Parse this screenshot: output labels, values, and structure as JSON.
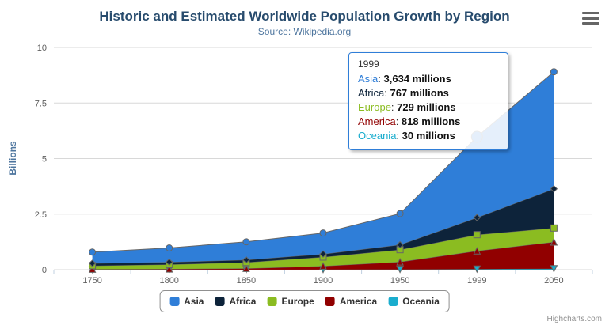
{
  "chart_data": {
    "type": "area",
    "stacking": "normal",
    "title": "Historic and Estimated Worldwide Population Growth by Region",
    "subtitle": "Source: Wikipedia.org",
    "xlabel": "",
    "ylabel": "Billions",
    "categories": [
      "1750",
      "1800",
      "1850",
      "1900",
      "1950",
      "1999",
      "2050"
    ],
    "series": [
      {
        "name": "Asia",
        "color": "#2f7ed8",
        "marker": "circle",
        "values": [
          502,
          635,
          809,
          947,
          1402,
          3634,
          5268
        ]
      },
      {
        "name": "Africa",
        "color": "#0d233a",
        "marker": "diamond",
        "values": [
          106,
          107,
          111,
          133,
          221,
          767,
          1766
        ]
      },
      {
        "name": "Europe",
        "color": "#8bbc21",
        "marker": "square",
        "values": [
          163,
          203,
          276,
          408,
          547,
          729,
          628
        ]
      },
      {
        "name": "America",
        "color": "#910000",
        "marker": "triangle",
        "values": [
          18,
          31,
          54,
          156,
          339,
          818,
          1201
        ]
      },
      {
        "name": "Oceania",
        "color": "#1aadce",
        "marker": "triangle-down",
        "values": [
          2,
          2,
          2,
          6,
          13,
          30,
          46
        ]
      }
    ],
    "values_unit": "millions",
    "y_axis_unit": "billions",
    "ylim": [
      0,
      10
    ],
    "yticks": [
      0,
      2.5,
      5,
      7.5,
      10
    ],
    "grid": "horizontal",
    "legend_position": "bottom"
  },
  "tooltip": {
    "header": "1999",
    "hover_index": 5,
    "rows": [
      {
        "name": "Asia",
        "value": "3,634 millions",
        "color": "#2f7ed8"
      },
      {
        "name": "Africa",
        "value": "767 millions",
        "color": "#0d233a"
      },
      {
        "name": "Europe",
        "value": "729 millions",
        "color": "#8bbc21"
      },
      {
        "name": "America",
        "value": "818 millions",
        "color": "#910000"
      },
      {
        "name": "Oceania",
        "value": "30 millions",
        "color": "#1aadce"
      }
    ]
  },
  "credits": {
    "text": "Highcharts.com"
  },
  "export_menu": {
    "icon": "hamburger-icon"
  }
}
